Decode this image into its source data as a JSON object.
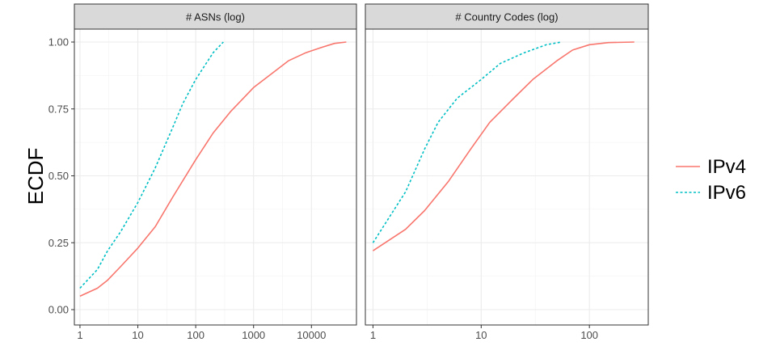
{
  "chart_data": {
    "type": "line",
    "ylabel": "ECDF",
    "ylim": [
      0,
      1
    ],
    "y_ticks": [
      "0.00",
      "0.25",
      "0.50",
      "0.75",
      "1.00"
    ],
    "grid": true,
    "legend_position": "right",
    "series_style": {
      "IPv4": {
        "color": "#F8766D",
        "dash": "solid"
      },
      "IPv6": {
        "color": "#00BFC4",
        "dash": "dotted"
      }
    },
    "legend": [
      {
        "name": "IPv4",
        "color": "#F8766D",
        "dash": "solid"
      },
      {
        "name": "IPv6",
        "color": "#00BFC4",
        "dash": "dotted"
      }
    ],
    "panels": [
      {
        "title": "# ASNs (log)",
        "x_scale": "log10",
        "xlim": [
          0.8,
          60000
        ],
        "x_ticks": [
          "1",
          "10",
          "100",
          "1000",
          "10000"
        ],
        "series": [
          {
            "name": "IPv4",
            "x": [
              1,
              2,
              3,
              5,
              10,
              20,
              40,
              100,
              200,
              400,
              1000,
              2000,
              4000,
              8000,
              15000,
              25000,
              40000
            ],
            "y": [
              0.05,
              0.08,
              0.11,
              0.16,
              0.23,
              0.31,
              0.42,
              0.56,
              0.66,
              0.74,
              0.83,
              0.88,
              0.93,
              0.96,
              0.98,
              0.995,
              1.0
            ]
          },
          {
            "name": "IPv6",
            "x": [
              1,
              2,
              3,
              5,
              10,
              20,
              40,
              60,
              100,
              200,
              300
            ],
            "y": [
              0.08,
              0.15,
              0.22,
              0.29,
              0.4,
              0.53,
              0.68,
              0.77,
              0.86,
              0.96,
              1.0
            ]
          }
        ]
      },
      {
        "title": "# Country Codes (log)",
        "x_scale": "log10",
        "xlim": [
          0.85,
          350
        ],
        "x_ticks": [
          "1",
          "10",
          "100"
        ],
        "series": [
          {
            "name": "IPv4",
            "x": [
              1,
              2,
              3,
              5,
              8,
              12,
              20,
              30,
              50,
              70,
              100,
              150,
              260
            ],
            "y": [
              0.22,
              0.3,
              0.37,
              0.48,
              0.6,
              0.7,
              0.79,
              0.86,
              0.93,
              0.97,
              0.99,
              0.998,
              1.0
            ]
          },
          {
            "name": "IPv6",
            "x": [
              1,
              2,
              3,
              4,
              6,
              10,
              15,
              25,
              40,
              55
            ],
            "y": [
              0.25,
              0.44,
              0.6,
              0.7,
              0.79,
              0.86,
              0.92,
              0.96,
              0.99,
              1.0
            ]
          }
        ]
      }
    ]
  }
}
